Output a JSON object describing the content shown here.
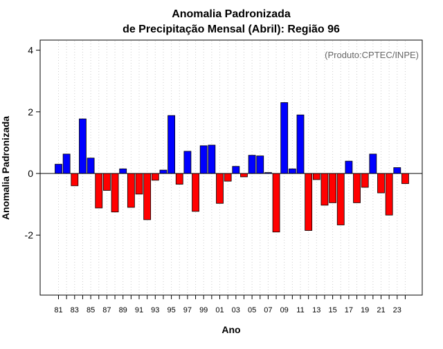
{
  "chart_data": {
    "type": "bar",
    "title_line1": "Anomalia Padronizada",
    "title_line2": "de Precipitação Mensal (Abril): Região 96",
    "product_label": "(Produto:CPTEC/INPE)",
    "xlabel": "Ano",
    "ylabel": "Anomalia Padronizada",
    "ylim": [
      -4,
      4.3
    ],
    "yticks": [
      -2,
      0,
      2,
      4
    ],
    "grid": "vertical dotted",
    "colors": {
      "positive": "#0000ff",
      "negative": "#ff0000",
      "stroke": "#000000",
      "grid": "#cccccc",
      "product": "#666666"
    },
    "categories": [
      "81",
      "82",
      "83",
      "84",
      "85",
      "86",
      "87",
      "88",
      "89",
      "90",
      "91",
      "92",
      "93",
      "94",
      "95",
      "96",
      "97",
      "98",
      "99",
      "00",
      "01",
      "02",
      "03",
      "04",
      "05",
      "06",
      "07",
      "08",
      "09",
      "10",
      "11",
      "12",
      "13",
      "14",
      "15",
      "16",
      "17",
      "18",
      "19",
      "20",
      "21",
      "22",
      "23",
      "24"
    ],
    "xtick_labels": [
      "81",
      "83",
      "85",
      "87",
      "89",
      "91",
      "93",
      "95",
      "97",
      "99",
      "01",
      "03",
      "05",
      "07",
      "09",
      "11",
      "13",
      "15",
      "17",
      "19",
      "21",
      "23"
    ],
    "values": [
      0.3,
      0.63,
      -0.4,
      1.77,
      0.5,
      -1.12,
      -0.55,
      -1.25,
      0.15,
      -1.1,
      -0.67,
      -1.5,
      -0.22,
      0.11,
      1.88,
      -0.35,
      0.72,
      -1.23,
      0.9,
      0.92,
      -0.97,
      -0.25,
      0.23,
      -0.11,
      0.59,
      0.57,
      0.03,
      -1.9,
      2.3,
      0.15,
      1.9,
      -1.85,
      -0.2,
      -1.03,
      -0.95,
      -1.67,
      0.4,
      -0.95,
      -0.45,
      0.63,
      -0.63,
      -1.35,
      0.19,
      -0.33
    ]
  }
}
